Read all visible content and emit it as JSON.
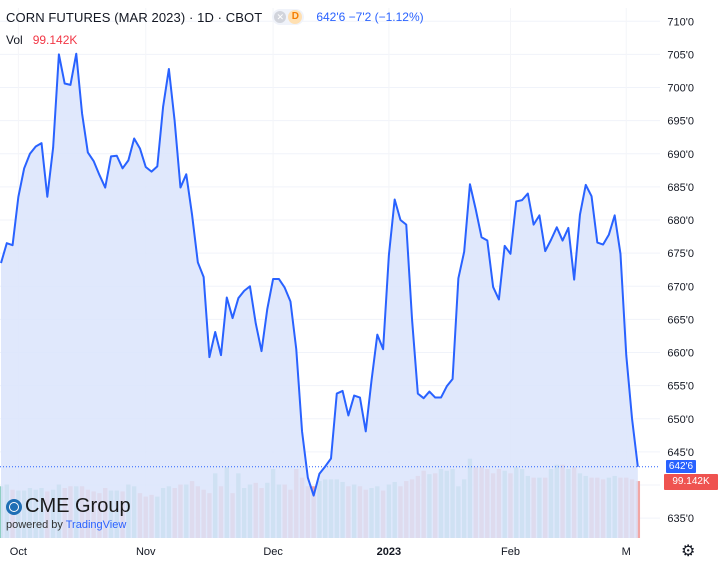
{
  "header": {
    "title": "CORN FUTURES (MAR 2023) · 1D · CBOT",
    "badge_letter": "D",
    "quote": "642'6  −7'2 (−1.12%)"
  },
  "volume": {
    "label": "Vol",
    "value": "99.142K"
  },
  "logo": {
    "name": "CME Group",
    "powered_by": "powered by",
    "brand": "TradingView"
  },
  "price_tag": "642'6",
  "volume_tag": "99.142K",
  "settings_icon": "gear-icon",
  "colors": {
    "line": "#2962ff",
    "area_fill": "#dbe4fb",
    "vol_up": "#8fcfc3",
    "vol_down": "#f2a6a4"
  },
  "chart_data": {
    "type": "area",
    "title": "CORN FUTURES (MAR 2023) · 1D · CBOT",
    "ylim": [
      632,
      712
    ],
    "y_ticks": [
      {
        "value": 635,
        "label": "635'0"
      },
      {
        "value": 640,
        "label": "640'0"
      },
      {
        "value": 645,
        "label": "645'0"
      },
      {
        "value": 650,
        "label": "650'0"
      },
      {
        "value": 655,
        "label": "655'0"
      },
      {
        "value": 660,
        "label": "660'0"
      },
      {
        "value": 665,
        "label": "665'0"
      },
      {
        "value": 670,
        "label": "670'0"
      },
      {
        "value": 675,
        "label": "675'0"
      },
      {
        "value": 680,
        "label": "680'0"
      },
      {
        "value": 685,
        "label": "685'0"
      },
      {
        "value": 690,
        "label": "690'0"
      },
      {
        "value": 695,
        "label": "695'0"
      },
      {
        "value": 700,
        "label": "700'0"
      },
      {
        "value": 705,
        "label": "705'0"
      },
      {
        "value": 710,
        "label": "710'0"
      }
    ],
    "x_ticks": [
      {
        "index": 3,
        "label": "Oct"
      },
      {
        "index": 25,
        "label": "Nov"
      },
      {
        "index": 47,
        "label": "Dec"
      },
      {
        "index": 67,
        "label": "2023"
      },
      {
        "index": 88,
        "label": "Feb"
      },
      {
        "index": 108,
        "label": "M"
      }
    ],
    "last_price": 642.75,
    "series": [
      {
        "name": "Price",
        "values": [
          673.5,
          676.5,
          676.2,
          683.5,
          687.8,
          690.0,
          691.1,
          691.6,
          683.5,
          690.9,
          705.0,
          700.6,
          700.4,
          705.1,
          696.1,
          690.2,
          688.9,
          686.8,
          684.9,
          689.6,
          689.7,
          687.8,
          689.0,
          692.3,
          690.8,
          688.0,
          687.3,
          688.1,
          697.1,
          702.8,
          694.9,
          684.9,
          686.9,
          680.8,
          673.6,
          671.4,
          659.3,
          663.1,
          659.6,
          668.3,
          665.2,
          668.2,
          669.3,
          670.0,
          664.4,
          660.2,
          666.6,
          671.1,
          671.1,
          669.8,
          667.7,
          660.5,
          648.1,
          641.1,
          638.4,
          641.7,
          642.8,
          644.0,
          653.8,
          654.2,
          650.5,
          653.5,
          653.2,
          648.1,
          655.8,
          662.7,
          660.5,
          674.7,
          683.1,
          680.0,
          679.3,
          665.0,
          653.8,
          653.1,
          654.1,
          653.2,
          653.2,
          654.9,
          656.0,
          671.2,
          675.2,
          685.4,
          681.6,
          677.4,
          676.9,
          669.9,
          668.0,
          676.1,
          674.9,
          682.8,
          683.0,
          684.0,
          679.3,
          680.7,
          675.3,
          677.0,
          678.9,
          676.9,
          678.8,
          671.0,
          680.8,
          685.3,
          683.6,
          676.6,
          676.3,
          677.8,
          680.7,
          674.9,
          659.6,
          650.0,
          642.75
        ]
      },
      {
        "name": "Vol",
        "up_values": [
          60,
          62,
          62,
          55,
          55,
          58,
          56,
          58,
          60,
          56,
          62,
          68,
          58,
          60,
          60,
          58,
          55,
          60,
          60,
          55,
          55,
          56,
          62,
          60,
          58,
          60,
          50,
          48,
          58,
          60,
          60,
          52,
          62,
          72,
          75,
          80,
          78,
          75,
          72,
          82,
          70,
          75,
          58,
          62,
          82,
          80,
          64,
          80,
          62,
          64,
          55,
          62,
          60,
          60,
          58,
          66,
          68,
          68,
          68,
          65,
          60,
          62,
          60,
          60,
          58,
          60,
          55,
          62,
          65,
          68,
          65,
          70,
          74,
          78,
          74,
          75,
          80,
          78,
          80,
          60,
          68,
          92,
          82,
          82,
          80,
          75,
          80,
          78,
          75,
          82,
          80,
          72,
          70,
          70,
          70,
          80,
          85,
          85,
          80,
          82,
          75,
          72,
          70,
          70,
          68,
          70,
          72,
          70,
          70,
          68,
          66
        ],
        "down_values": [
          58,
          58,
          56,
          52,
          52,
          48,
          52,
          56,
          54,
          58,
          56,
          58,
          60,
          58,
          60,
          56,
          54,
          52,
          58,
          56,
          52,
          54,
          56,
          58,
          52,
          48,
          50,
          48,
          56,
          54,
          58,
          62,
          52,
          66,
          60,
          56,
          52,
          56,
          60,
          54,
          52,
          58,
          56,
          60,
          64,
          58,
          62,
          60,
          64,
          62,
          56,
          80,
          70,
          60,
          60,
          58,
          62,
          60,
          62,
          60,
          60,
          58,
          60,
          56,
          52,
          58,
          55,
          60,
          62,
          60,
          66,
          68,
          72,
          78,
          74,
          75,
          80,
          78,
          80,
          60,
          68,
          92,
          82,
          82,
          80,
          75,
          80,
          78,
          75,
          82,
          80,
          72,
          70,
          70,
          70,
          80,
          85,
          85,
          80,
          82,
          75,
          72,
          70,
          70,
          68,
          70,
          72,
          70,
          70,
          68,
          66
        ],
        "last_value": "99.142K"
      }
    ]
  }
}
